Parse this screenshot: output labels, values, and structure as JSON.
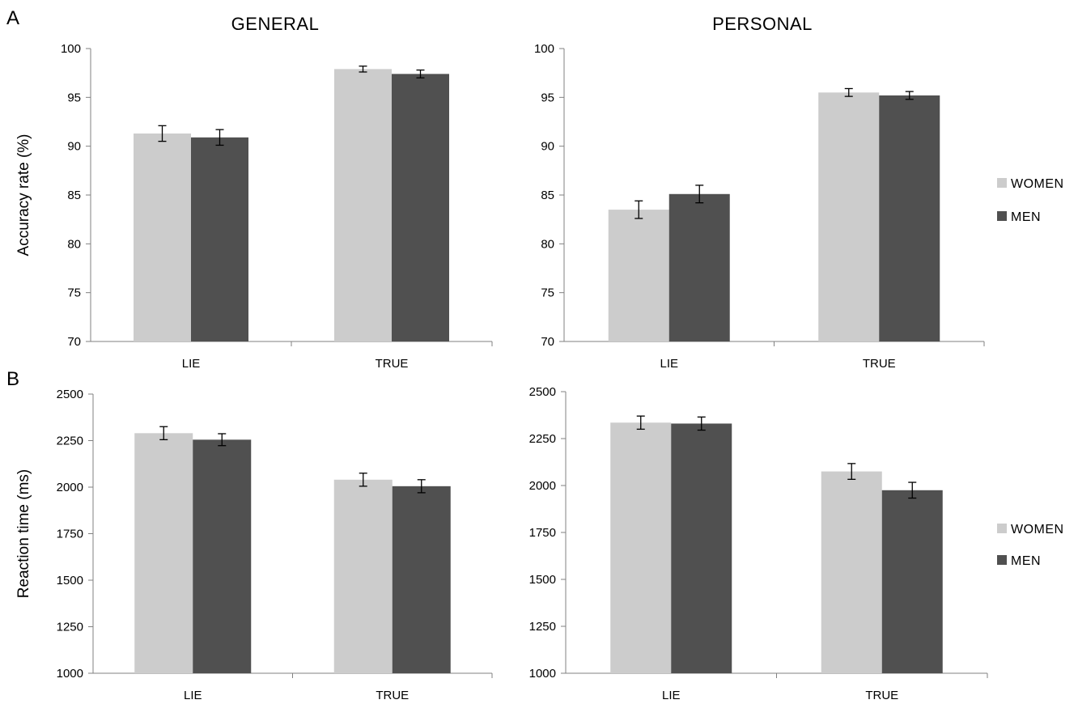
{
  "panel_letters": {
    "a": "A",
    "b": "B"
  },
  "column_titles": {
    "general": "GENERAL",
    "personal": "PERSONAL"
  },
  "colors": {
    "women": "#cccccc",
    "men": "#505050"
  },
  "legend": [
    {
      "label": "WOMEN",
      "color": "#cccccc"
    },
    {
      "label": "MEN",
      "color": "#505050"
    }
  ],
  "chart_data": [
    {
      "type": "bar",
      "title": "GENERAL",
      "panel": "A",
      "ylabel": "Accuracy rate (%)",
      "xlabel": "",
      "categories": [
        "LIE",
        "TRUE"
      ],
      "ylim": [
        70,
        100
      ],
      "yticks": [
        70,
        75,
        80,
        85,
        90,
        95,
        100
      ],
      "series": [
        {
          "name": "WOMEN",
          "values": [
            91.3,
            97.9
          ],
          "errors": [
            0.8,
            0.3
          ]
        },
        {
          "name": "MEN",
          "values": [
            90.9,
            97.4
          ],
          "errors": [
            0.8,
            0.4
          ]
        }
      ]
    },
    {
      "type": "bar",
      "title": "PERSONAL",
      "panel": "A",
      "ylabel": "",
      "xlabel": "",
      "categories": [
        "LIE",
        "TRUE"
      ],
      "ylim": [
        70,
        100
      ],
      "yticks": [
        70,
        75,
        80,
        85,
        90,
        95,
        100
      ],
      "series": [
        {
          "name": "WOMEN",
          "values": [
            83.5,
            95.5
          ],
          "errors": [
            0.9,
            0.4
          ]
        },
        {
          "name": "MEN",
          "values": [
            85.1,
            95.2
          ],
          "errors": [
            0.9,
            0.4
          ]
        }
      ]
    },
    {
      "type": "bar",
      "title": "",
      "panel": "B",
      "ylabel": "Reaction time (ms)",
      "xlabel": "",
      "categories": [
        "LIE",
        "TRUE"
      ],
      "ylim": [
        1000,
        2500
      ],
      "yticks": [
        1000,
        1250,
        1500,
        1750,
        2000,
        2250,
        2500
      ],
      "series": [
        {
          "name": "WOMEN",
          "values": [
            2290,
            2040
          ],
          "errors": [
            35,
            35
          ]
        },
        {
          "name": "MEN",
          "values": [
            2255,
            2005
          ],
          "errors": [
            32,
            35
          ]
        }
      ]
    },
    {
      "type": "bar",
      "title": "",
      "panel": "B",
      "ylabel": "",
      "xlabel": "",
      "categories": [
        "LIE",
        "TRUE"
      ],
      "ylim": [
        1000,
        2500
      ],
      "yticks": [
        1000,
        1250,
        1500,
        1750,
        2000,
        2250,
        2500
      ],
      "series": [
        {
          "name": "WOMEN",
          "values": [
            2335,
            2075
          ],
          "errors": [
            35,
            42
          ]
        },
        {
          "name": "MEN",
          "values": [
            2330,
            1975
          ],
          "errors": [
            35,
            42
          ]
        }
      ]
    }
  ]
}
